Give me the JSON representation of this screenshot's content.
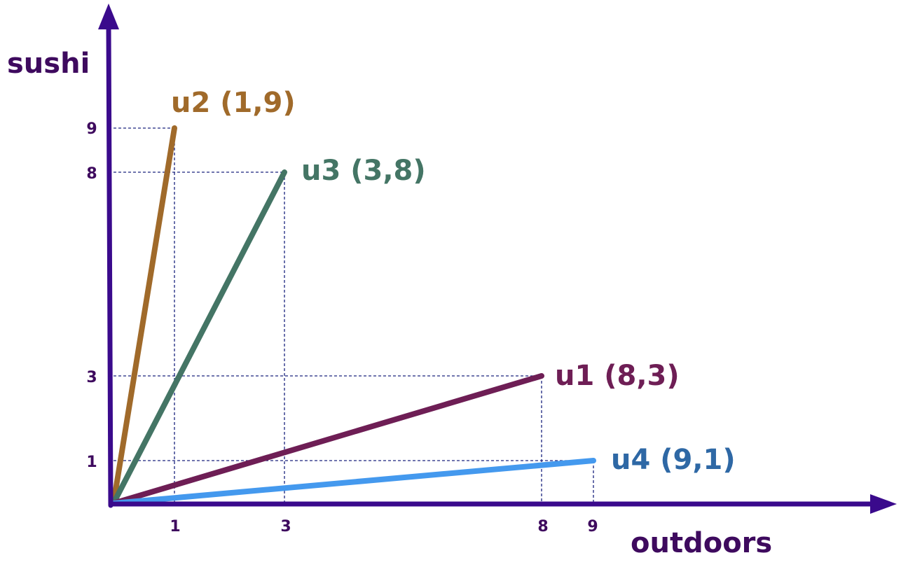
{
  "diagram": {
    "x_axis_label": "outdoors",
    "y_axis_label": "sushi",
    "axis_color": "#3a0a8c",
    "axis_label_color": "#3e0a5e",
    "guide_color": "#1a237e",
    "x_ticks": [
      "1",
      "3",
      "8",
      "9"
    ],
    "y_ticks": [
      "9",
      "8",
      "3",
      "1"
    ],
    "vectors": [
      {
        "label": "u2 (1,9)",
        "x": 1,
        "y": 9,
        "color": "#a06a2a"
      },
      {
        "label": "u3 (3,8)",
        "x": 3,
        "y": 8,
        "color": "#447565"
      },
      {
        "label": "u1 (8,3)",
        "x": 8,
        "y": 3,
        "color": "#6e1e55"
      },
      {
        "label": "u4 (9,1)",
        "x": 9,
        "y": 1,
        "color": "#4499ee",
        "label_color": "#2e68a5"
      }
    ]
  }
}
